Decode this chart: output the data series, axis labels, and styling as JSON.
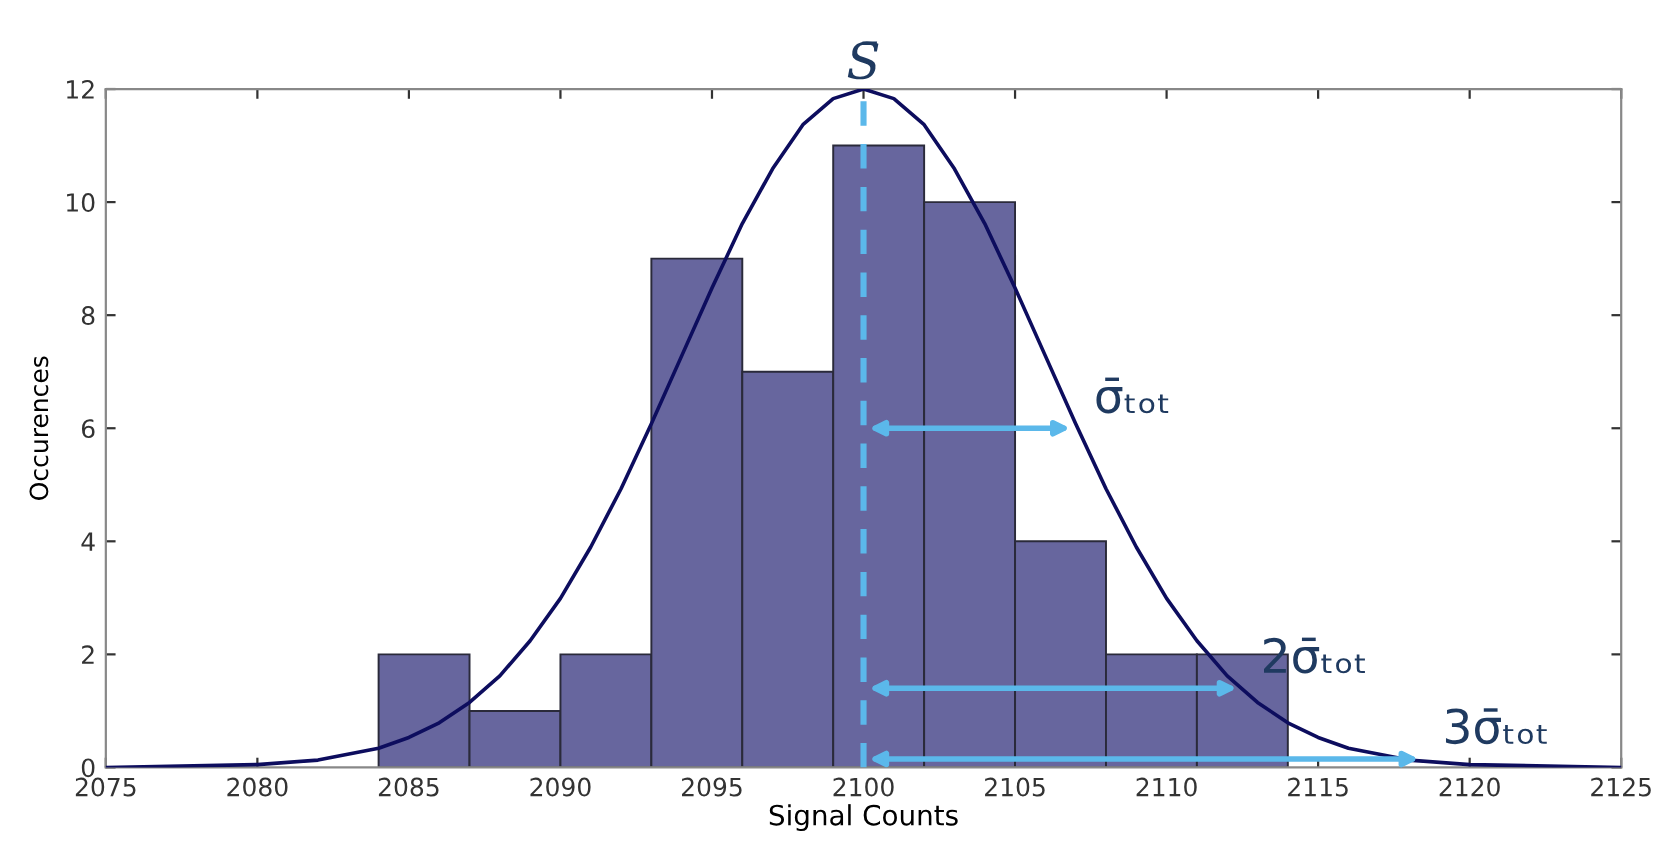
{
  "chart_data": {
    "type": "histogram",
    "xlabel": "Signal Counts",
    "ylabel": "Occurences",
    "xlim": [
      2075,
      2125
    ],
    "xticks": [
      2075,
      2080,
      2085,
      2090,
      2095,
      2100,
      2105,
      2110,
      2115,
      2120,
      2125
    ],
    "ylim": [
      0,
      12
    ],
    "yticks": [
      0,
      2,
      4,
      6,
      8,
      10,
      12
    ],
    "grid": false,
    "series": [
      {
        "color": "#67669e",
        "bins": [
          2084,
          2087,
          2090,
          2093,
          2096,
          2099,
          2102,
          2105,
          2108,
          2111,
          2114
        ],
        "values": [
          2,
          1,
          2,
          9,
          7,
          11,
          10,
          4,
          2,
          2
        ]
      },
      {
        "type": "line",
        "color": "#0d0d5e",
        "x": [
          2075,
          2080,
          2082,
          2084,
          2085,
          2086,
          2087,
          2088,
          2089,
          2090,
          2091,
          2092,
          2093,
          2094,
          2095,
          2096,
          2097,
          2098,
          2099,
          2100,
          2101,
          2102,
          2103,
          2104,
          2105,
          2106,
          2107,
          2108,
          2109,
          2110,
          2111,
          2112,
          2113,
          2114,
          2115,
          2116,
          2118,
          2120,
          2125
        ],
        "values": [
          0.0,
          0.05,
          0.13,
          0.34,
          0.53,
          0.79,
          1.15,
          1.62,
          2.24,
          2.99,
          3.9,
          4.93,
          6.08,
          7.28,
          8.48,
          9.62,
          10.59,
          11.37,
          11.83,
          12,
          11.83,
          11.37,
          10.59,
          9.62,
          8.48,
          7.28,
          6.08,
          4.93,
          3.9,
          2.99,
          2.24,
          1.62,
          1.15,
          0.79,
          0.53,
          0.34,
          0.13,
          0.05,
          0.0
        ]
      }
    ],
    "ref_lines": [
      {
        "axis": "x",
        "value": 2100,
        "label": "S̄",
        "color": "#5bb8ea",
        "line_style": "dashed"
      }
    ],
    "annotations": [
      {
        "text": "σ̄ₜₒₜ",
        "x": 2107,
        "y": 6
      },
      {
        "text": "2σ̄ₜₒₜ",
        "x": 2112.5,
        "y": 1.4
      },
      {
        "text": "3σ̄ₜₒₜ",
        "x": 2118.5,
        "y": 0.15
      }
    ]
  }
}
